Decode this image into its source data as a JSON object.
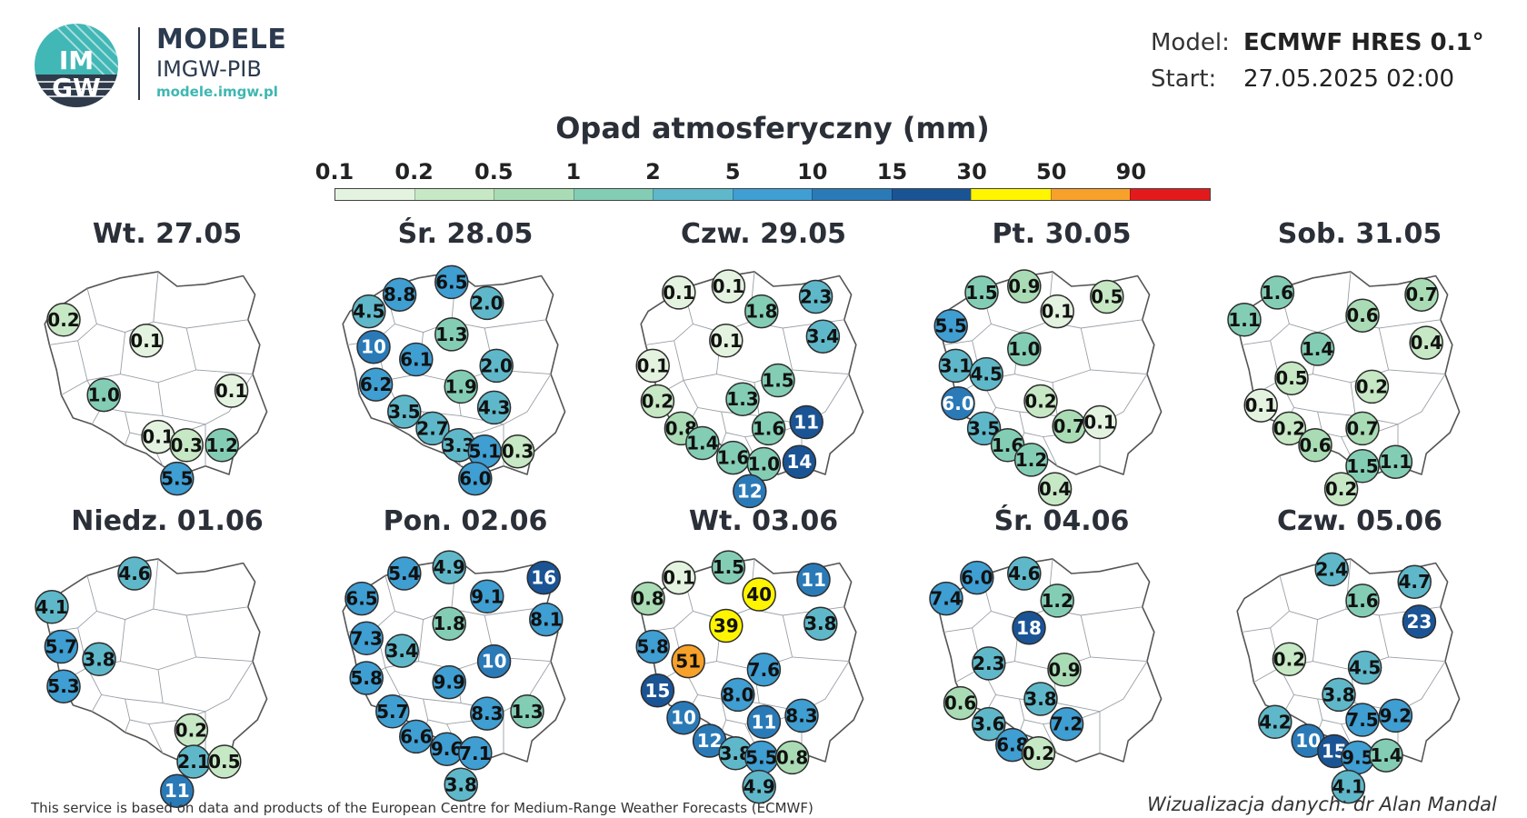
{
  "brand": {
    "logo_text_top": "IM",
    "logo_text_bottom": "GW",
    "title": "MODELE",
    "subtitle": "IMGW-PIB",
    "url": "modele.imgw.pl"
  },
  "meta": {
    "model_label": "Model:",
    "model_value": "ECMWF HRES 0.1°",
    "start_label": "Start:",
    "start_value": "27.05.2025 02:00"
  },
  "legend": {
    "title": "Opad atmosferyczny (mm)",
    "ticks": [
      "0.1",
      "0.2",
      "0.5",
      "1",
      "2",
      "5",
      "10",
      "15",
      "30",
      "50",
      "90"
    ],
    "colors": [
      "#e3f3df",
      "#c7e8c4",
      "#a9dcb4",
      "#84cdb5",
      "#5fb8c9",
      "#3f9ed2",
      "#2a7ab8",
      "#1a5495",
      "#fff500",
      "#f7a12a",
      "#e31a1c"
    ]
  },
  "panels": [
    {
      "title": "Wt. 27.05",
      "values": [
        {
          "v": "0.2",
          "x": 0.1,
          "y": 0.26,
          "c": "#c7e8c4"
        },
        {
          "v": "0.1",
          "x": 0.45,
          "y": 0.36,
          "c": "#e3f3df"
        },
        {
          "v": "1.0",
          "x": 0.27,
          "y": 0.62,
          "c": "#84cdb5"
        },
        {
          "v": "0.1",
          "x": 0.81,
          "y": 0.6,
          "c": "#e3f3df"
        },
        {
          "v": "0.1",
          "x": 0.5,
          "y": 0.82,
          "c": "#e3f3df"
        },
        {
          "v": "0.3",
          "x": 0.62,
          "y": 0.86,
          "c": "#c7e8c4"
        },
        {
          "v": "1.2",
          "x": 0.77,
          "y": 0.86,
          "c": "#84cdb5"
        },
        {
          "v": "5.5",
          "x": 0.58,
          "y": 1.02,
          "c": "#3f9ed2"
        }
      ]
    },
    {
      "title": "Śr. 28.05",
      "values": [
        {
          "v": "4.5",
          "x": 0.13,
          "y": 0.22,
          "c": "#5fb8c9"
        },
        {
          "v": "8.8",
          "x": 0.26,
          "y": 0.14,
          "c": "#3f9ed2"
        },
        {
          "v": "6.5",
          "x": 0.48,
          "y": 0.08,
          "c": "#3f9ed2"
        },
        {
          "v": "2.0",
          "x": 0.63,
          "y": 0.18,
          "c": "#5fb8c9"
        },
        {
          "v": "10",
          "x": 0.15,
          "y": 0.39,
          "c": "#2a7ab8"
        },
        {
          "v": "6.1",
          "x": 0.33,
          "y": 0.45,
          "c": "#3f9ed2"
        },
        {
          "v": "1.3",
          "x": 0.48,
          "y": 0.33,
          "c": "#84cdb5"
        },
        {
          "v": "2.0",
          "x": 0.67,
          "y": 0.48,
          "c": "#5fb8c9"
        },
        {
          "v": "6.2",
          "x": 0.16,
          "y": 0.57,
          "c": "#3f9ed2"
        },
        {
          "v": "1.9",
          "x": 0.52,
          "y": 0.58,
          "c": "#84cdb5"
        },
        {
          "v": "3.5",
          "x": 0.28,
          "y": 0.7,
          "c": "#5fb8c9"
        },
        {
          "v": "4.3",
          "x": 0.66,
          "y": 0.68,
          "c": "#5fb8c9"
        },
        {
          "v": "2.7",
          "x": 0.4,
          "y": 0.78,
          "c": "#5fb8c9"
        },
        {
          "v": "3.3",
          "x": 0.51,
          "y": 0.86,
          "c": "#5fb8c9"
        },
        {
          "v": "5.1",
          "x": 0.62,
          "y": 0.89,
          "c": "#3f9ed2"
        },
        {
          "v": "0.3",
          "x": 0.76,
          "y": 0.89,
          "c": "#c7e8c4"
        },
        {
          "v": "6.0",
          "x": 0.58,
          "y": 1.02,
          "c": "#3f9ed2"
        }
      ]
    },
    {
      "title": "Czw. 29.05",
      "values": [
        {
          "v": "0.1",
          "x": 0.18,
          "y": 0.13,
          "c": "#e3f3df"
        },
        {
          "v": "0.1",
          "x": 0.39,
          "y": 0.1,
          "c": "#e3f3df"
        },
        {
          "v": "1.8",
          "x": 0.53,
          "y": 0.22,
          "c": "#84cdb5"
        },
        {
          "v": "2.3",
          "x": 0.76,
          "y": 0.15,
          "c": "#5fb8c9"
        },
        {
          "v": "0.1",
          "x": 0.38,
          "y": 0.36,
          "c": "#e3f3df"
        },
        {
          "v": "3.4",
          "x": 0.79,
          "y": 0.34,
          "c": "#5fb8c9"
        },
        {
          "v": "0.1",
          "x": 0.07,
          "y": 0.48,
          "c": "#e3f3df"
        },
        {
          "v": "1.5",
          "x": 0.6,
          "y": 0.55,
          "c": "#84cdb5"
        },
        {
          "v": "0.2",
          "x": 0.09,
          "y": 0.65,
          "c": "#c7e8c4"
        },
        {
          "v": "1.3",
          "x": 0.45,
          "y": 0.64,
          "c": "#84cdb5"
        },
        {
          "v": "0.8",
          "x": 0.19,
          "y": 0.78,
          "c": "#a9dcb4"
        },
        {
          "v": "1.6",
          "x": 0.56,
          "y": 0.78,
          "c": "#84cdb5"
        },
        {
          "v": "11",
          "x": 0.72,
          "y": 0.75,
          "c": "#1a5495"
        },
        {
          "v": "1.4",
          "x": 0.28,
          "y": 0.85,
          "c": "#84cdb5"
        },
        {
          "v": "1.6",
          "x": 0.41,
          "y": 0.92,
          "c": "#84cdb5"
        },
        {
          "v": "1.0",
          "x": 0.54,
          "y": 0.95,
          "c": "#84cdb5"
        },
        {
          "v": "14",
          "x": 0.69,
          "y": 0.94,
          "c": "#1a5495"
        },
        {
          "v": "12",
          "x": 0.48,
          "y": 1.08,
          "c": "#2a7ab8"
        }
      ]
    },
    {
      "title": "Pt. 30.05",
      "values": [
        {
          "v": "1.5",
          "x": 0.2,
          "y": 0.13,
          "c": "#84cdb5"
        },
        {
          "v": "0.9",
          "x": 0.38,
          "y": 0.1,
          "c": "#a9dcb4"
        },
        {
          "v": "0.1",
          "x": 0.52,
          "y": 0.22,
          "c": "#e3f3df"
        },
        {
          "v": "0.5",
          "x": 0.73,
          "y": 0.15,
          "c": "#c7e8c4"
        },
        {
          "v": "5.5",
          "x": 0.07,
          "y": 0.29,
          "c": "#3f9ed2"
        },
        {
          "v": "1.0",
          "x": 0.38,
          "y": 0.4,
          "c": "#84cdb5"
        },
        {
          "v": "3.1",
          "x": 0.09,
          "y": 0.48,
          "c": "#5fb8c9"
        },
        {
          "v": "4.5",
          "x": 0.22,
          "y": 0.52,
          "c": "#5fb8c9"
        },
        {
          "v": "6.0",
          "x": 0.1,
          "y": 0.66,
          "c": "#2a7ab8"
        },
        {
          "v": "0.2",
          "x": 0.45,
          "y": 0.65,
          "c": "#c7e8c4"
        },
        {
          "v": "3.5",
          "x": 0.21,
          "y": 0.78,
          "c": "#5fb8c9"
        },
        {
          "v": "0.7",
          "x": 0.57,
          "y": 0.77,
          "c": "#a9dcb4"
        },
        {
          "v": "0.1",
          "x": 0.7,
          "y": 0.75,
          "c": "#e3f3df"
        },
        {
          "v": "1.6",
          "x": 0.31,
          "y": 0.86,
          "c": "#84cdb5"
        },
        {
          "v": "1.2",
          "x": 0.41,
          "y": 0.93,
          "c": "#84cdb5"
        },
        {
          "v": "0.4",
          "x": 0.51,
          "y": 1.07,
          "c": "#c7e8c4"
        }
      ]
    },
    {
      "title": "Sob. 31.05",
      "values": [
        {
          "v": "1.6",
          "x": 0.19,
          "y": 0.13,
          "c": "#84cdb5"
        },
        {
          "v": "0.7",
          "x": 0.8,
          "y": 0.14,
          "c": "#a9dcb4"
        },
        {
          "v": "1.1",
          "x": 0.05,
          "y": 0.26,
          "c": "#84cdb5"
        },
        {
          "v": "0.6",
          "x": 0.55,
          "y": 0.24,
          "c": "#a9dcb4"
        },
        {
          "v": "0.4",
          "x": 0.82,
          "y": 0.37,
          "c": "#c7e8c4"
        },
        {
          "v": "1.4",
          "x": 0.36,
          "y": 0.4,
          "c": "#84cdb5"
        },
        {
          "v": "0.5",
          "x": 0.25,
          "y": 0.54,
          "c": "#c7e8c4"
        },
        {
          "v": "0.2",
          "x": 0.59,
          "y": 0.58,
          "c": "#c7e8c4"
        },
        {
          "v": "0.1",
          "x": 0.12,
          "y": 0.67,
          "c": "#e3f3df"
        },
        {
          "v": "0.2",
          "x": 0.24,
          "y": 0.78,
          "c": "#c7e8c4"
        },
        {
          "v": "0.6",
          "x": 0.35,
          "y": 0.86,
          "c": "#a9dcb4"
        },
        {
          "v": "0.7",
          "x": 0.55,
          "y": 0.78,
          "c": "#a9dcb4"
        },
        {
          "v": "1.5",
          "x": 0.55,
          "y": 0.96,
          "c": "#84cdb5"
        },
        {
          "v": "1.1",
          "x": 0.69,
          "y": 0.94,
          "c": "#84cdb5"
        },
        {
          "v": "0.2",
          "x": 0.46,
          "y": 1.07,
          "c": "#c7e8c4"
        }
      ]
    },
    {
      "title": "Niedz. 01.06",
      "values": [
        {
          "v": "4.6",
          "x": 0.4,
          "y": 0.1,
          "c": "#5fb8c9"
        },
        {
          "v": "4.1",
          "x": 0.05,
          "y": 0.26,
          "c": "#5fb8c9"
        },
        {
          "v": "5.7",
          "x": 0.09,
          "y": 0.45,
          "c": "#3f9ed2"
        },
        {
          "v": "3.8",
          "x": 0.25,
          "y": 0.51,
          "c": "#5fb8c9"
        },
        {
          "v": "5.3",
          "x": 0.1,
          "y": 0.64,
          "c": "#3f9ed2"
        },
        {
          "v": "0.2",
          "x": 0.64,
          "y": 0.85,
          "c": "#c7e8c4"
        },
        {
          "v": "2.1",
          "x": 0.65,
          "y": 1.0,
          "c": "#5fb8c9"
        },
        {
          "v": "0.5",
          "x": 0.78,
          "y": 1.0,
          "c": "#c7e8c4"
        },
        {
          "v": "11",
          "x": 0.58,
          "y": 1.14,
          "c": "#2a7ab8"
        }
      ]
    },
    {
      "title": "Pon. 02.06",
      "values": [
        {
          "v": "5.4",
          "x": 0.28,
          "y": 0.1,
          "c": "#3f9ed2"
        },
        {
          "v": "4.9",
          "x": 0.47,
          "y": 0.07,
          "c": "#5fb8c9"
        },
        {
          "v": "16",
          "x": 0.87,
          "y": 0.12,
          "c": "#1a5495"
        },
        {
          "v": "6.5",
          "x": 0.1,
          "y": 0.22,
          "c": "#3f9ed2"
        },
        {
          "v": "9.1",
          "x": 0.63,
          "y": 0.21,
          "c": "#3f9ed2"
        },
        {
          "v": "8.1",
          "x": 0.88,
          "y": 0.32,
          "c": "#3f9ed2"
        },
        {
          "v": "1.8",
          "x": 0.47,
          "y": 0.34,
          "c": "#84cdb5"
        },
        {
          "v": "3.4",
          "x": 0.27,
          "y": 0.47,
          "c": "#5fb8c9"
        },
        {
          "v": "7.3",
          "x": 0.12,
          "y": 0.41,
          "c": "#3f9ed2"
        },
        {
          "v": "10",
          "x": 0.66,
          "y": 0.52,
          "c": "#2a7ab8"
        },
        {
          "v": "5.8",
          "x": 0.12,
          "y": 0.6,
          "c": "#3f9ed2"
        },
        {
          "v": "9.9",
          "x": 0.47,
          "y": 0.62,
          "c": "#3f9ed2"
        },
        {
          "v": "5.7",
          "x": 0.23,
          "y": 0.76,
          "c": "#3f9ed2"
        },
        {
          "v": "8.3",
          "x": 0.63,
          "y": 0.77,
          "c": "#3f9ed2"
        },
        {
          "v": "1.3",
          "x": 0.8,
          "y": 0.76,
          "c": "#84cdb5"
        },
        {
          "v": "6.6",
          "x": 0.33,
          "y": 0.88,
          "c": "#3f9ed2"
        },
        {
          "v": "9.6",
          "x": 0.46,
          "y": 0.94,
          "c": "#3f9ed2"
        },
        {
          "v": "7.1",
          "x": 0.58,
          "y": 0.96,
          "c": "#3f9ed2"
        },
        {
          "v": "3.8",
          "x": 0.52,
          "y": 1.11,
          "c": "#5fb8c9"
        }
      ]
    },
    {
      "title": "Wt. 03.06",
      "values": [
        {
          "v": "0.1",
          "x": 0.18,
          "y": 0.12,
          "c": "#e3f3df"
        },
        {
          "v": "1.5",
          "x": 0.39,
          "y": 0.07,
          "c": "#84cdb5"
        },
        {
          "v": "40",
          "x": 0.52,
          "y": 0.2,
          "c": "#fff500"
        },
        {
          "v": "11",
          "x": 0.75,
          "y": 0.13,
          "c": "#2a7ab8"
        },
        {
          "v": "0.8",
          "x": 0.05,
          "y": 0.22,
          "c": "#a9dcb4"
        },
        {
          "v": "39",
          "x": 0.38,
          "y": 0.35,
          "c": "#fff500"
        },
        {
          "v": "3.8",
          "x": 0.78,
          "y": 0.34,
          "c": "#5fb8c9"
        },
        {
          "v": "5.8",
          "x": 0.07,
          "y": 0.45,
          "c": "#3f9ed2"
        },
        {
          "v": "51",
          "x": 0.22,
          "y": 0.52,
          "c": "#f7a12a"
        },
        {
          "v": "7.6",
          "x": 0.54,
          "y": 0.56,
          "c": "#3f9ed2"
        },
        {
          "v": "15",
          "x": 0.09,
          "y": 0.66,
          "c": "#1a5495"
        },
        {
          "v": "8.0",
          "x": 0.43,
          "y": 0.68,
          "c": "#3f9ed2"
        },
        {
          "v": "10",
          "x": 0.2,
          "y": 0.79,
          "c": "#2a7ab8"
        },
        {
          "v": "11",
          "x": 0.54,
          "y": 0.81,
          "c": "#2a7ab8"
        },
        {
          "v": "8.3",
          "x": 0.7,
          "y": 0.78,
          "c": "#3f9ed2"
        },
        {
          "v": "12",
          "x": 0.31,
          "y": 0.9,
          "c": "#2a7ab8"
        },
        {
          "v": "3.8",
          "x": 0.42,
          "y": 0.96,
          "c": "#5fb8c9"
        },
        {
          "v": "5.5",
          "x": 0.53,
          "y": 0.98,
          "c": "#3f9ed2"
        },
        {
          "v": "0.8",
          "x": 0.66,
          "y": 0.98,
          "c": "#a9dcb4"
        },
        {
          "v": "4.9",
          "x": 0.52,
          "y": 1.12,
          "c": "#5fb8c9"
        }
      ]
    },
    {
      "title": "Śr. 04.06",
      "values": [
        {
          "v": "6.0",
          "x": 0.18,
          "y": 0.12,
          "c": "#3f9ed2"
        },
        {
          "v": "4.6",
          "x": 0.38,
          "y": 0.1,
          "c": "#5fb8c9"
        },
        {
          "v": "7.4",
          "x": 0.05,
          "y": 0.22,
          "c": "#3f9ed2"
        },
        {
          "v": "1.2",
          "x": 0.52,
          "y": 0.23,
          "c": "#84cdb5"
        },
        {
          "v": "18",
          "x": 0.4,
          "y": 0.36,
          "c": "#1a5495"
        },
        {
          "v": "2.3",
          "x": 0.23,
          "y": 0.53,
          "c": "#5fb8c9"
        },
        {
          "v": "0.9",
          "x": 0.55,
          "y": 0.56,
          "c": "#a9dcb4"
        },
        {
          "v": "0.6",
          "x": 0.11,
          "y": 0.72,
          "c": "#a9dcb4"
        },
        {
          "v": "3.8",
          "x": 0.45,
          "y": 0.7,
          "c": "#5fb8c9"
        },
        {
          "v": "3.6",
          "x": 0.23,
          "y": 0.82,
          "c": "#5fb8c9"
        },
        {
          "v": "7.2",
          "x": 0.56,
          "y": 0.82,
          "c": "#3f9ed2"
        },
        {
          "v": "6.8",
          "x": 0.33,
          "y": 0.92,
          "c": "#3f9ed2"
        },
        {
          "v": "0.2",
          "x": 0.44,
          "y": 0.96,
          "c": "#c7e8c4"
        }
      ]
    },
    {
      "title": "Czw. 05.06",
      "values": [
        {
          "v": "2.4",
          "x": 0.42,
          "y": 0.08,
          "c": "#5fb8c9"
        },
        {
          "v": "4.7",
          "x": 0.77,
          "y": 0.14,
          "c": "#5fb8c9"
        },
        {
          "v": "1.6",
          "x": 0.55,
          "y": 0.23,
          "c": "#84cdb5"
        },
        {
          "v": "23",
          "x": 0.79,
          "y": 0.33,
          "c": "#1a5495"
        },
        {
          "v": "0.2",
          "x": 0.24,
          "y": 0.51,
          "c": "#c7e8c4"
        },
        {
          "v": "4.5",
          "x": 0.56,
          "y": 0.55,
          "c": "#5fb8c9"
        },
        {
          "v": "3.8",
          "x": 0.45,
          "y": 0.68,
          "c": "#5fb8c9"
        },
        {
          "v": "4.2",
          "x": 0.18,
          "y": 0.81,
          "c": "#5fb8c9"
        },
        {
          "v": "7.5",
          "x": 0.55,
          "y": 0.8,
          "c": "#3f9ed2"
        },
        {
          "v": "9.2",
          "x": 0.69,
          "y": 0.78,
          "c": "#3f9ed2"
        },
        {
          "v": "10",
          "x": 0.32,
          "y": 0.9,
          "c": "#2a7ab8"
        },
        {
          "v": "15",
          "x": 0.43,
          "y": 0.95,
          "c": "#1a5495"
        },
        {
          "v": "9.5",
          "x": 0.53,
          "y": 0.98,
          "c": "#3f9ed2"
        },
        {
          "v": "1.4",
          "x": 0.65,
          "y": 0.97,
          "c": "#84cdb5"
        },
        {
          "v": "4.1",
          "x": 0.49,
          "y": 1.12,
          "c": "#5fb8c9"
        }
      ]
    }
  ],
  "footer": {
    "note": "This service is based on data and products of the European Centre for Medium-Range Weather Forecasts (ECMWF)",
    "credit": "Wizualizacja danych: dr Alan Mandal"
  }
}
